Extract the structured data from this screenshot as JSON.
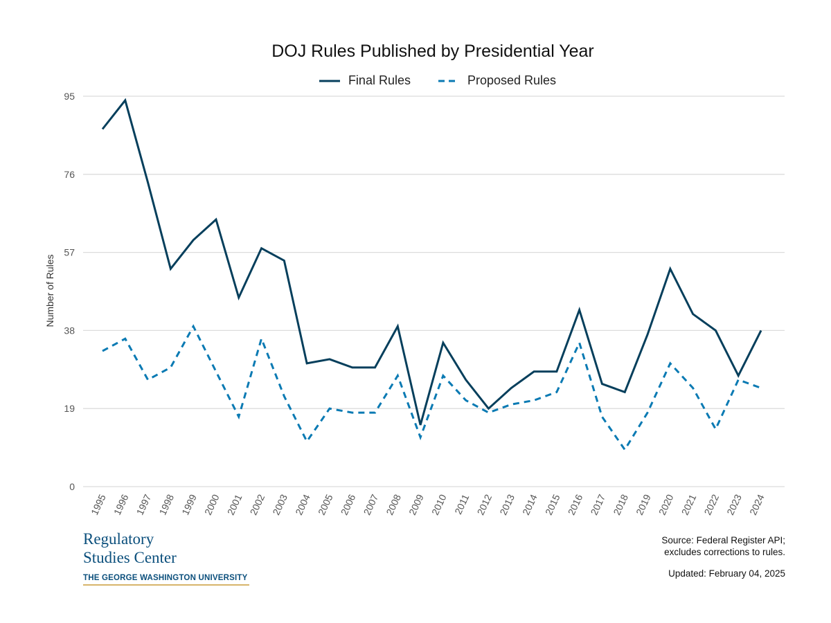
{
  "chart_data": {
    "type": "line",
    "title": "DOJ Rules Published by Presidential Year",
    "xlabel": "",
    "ylabel": "Number of Rules",
    "ylim": [
      0,
      95
    ],
    "yticks": [
      0,
      19,
      38,
      57,
      76,
      95
    ],
    "grid": true,
    "legend_position": "top",
    "x": [
      "1995",
      "1996",
      "1997",
      "1998",
      "1999",
      "2000",
      "2001",
      "2002",
      "2003",
      "2004",
      "2005",
      "2006",
      "2007",
      "2008",
      "2009",
      "2010",
      "2011",
      "2012",
      "2013",
      "2014",
      "2015",
      "2016",
      "2017",
      "2018",
      "2019",
      "2020",
      "2021",
      "2022",
      "2023",
      "2024"
    ],
    "series": [
      {
        "name": "Final Rules",
        "color": "#063f5c",
        "dash": "solid",
        "values": [
          87,
          94,
          74,
          53,
          60,
          65,
          46,
          58,
          55,
          30,
          31,
          29,
          29,
          39,
          15,
          35,
          26,
          19,
          24,
          28,
          28,
          43,
          25,
          23,
          37,
          53,
          42,
          38,
          27,
          38
        ]
      },
      {
        "name": "Proposed Rules",
        "color": "#0a7ab3",
        "dash": "dashed",
        "values": [
          33,
          36,
          26,
          29,
          39,
          28,
          17,
          36,
          22,
          11,
          19,
          18,
          18,
          27,
          12,
          27,
          21,
          18,
          20,
          21,
          23,
          35,
          17,
          9,
          18,
          30,
          24,
          14,
          26,
          24
        ]
      }
    ]
  },
  "footer": {
    "logo_line1": "Regulatory",
    "logo_line2": "Studies Center",
    "logo_line3": "THE GEORGE WASHINGTON UNIVERSITY",
    "source_line1": "Source: Federal Register API;",
    "source_line2": "excludes corrections to rules.",
    "updated": "Updated: February 04, 2025"
  }
}
